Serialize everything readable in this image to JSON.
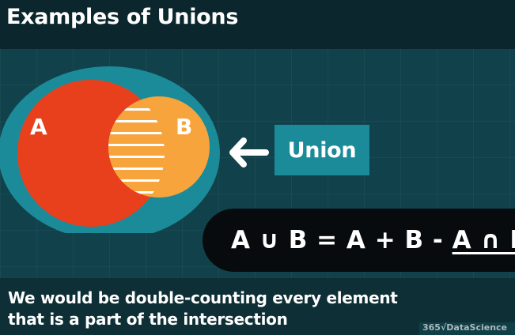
{
  "title": "Examples of Unions",
  "venn": {
    "set_a": "A",
    "set_b": "B",
    "colors": {
      "a": "#e8401c",
      "b": "#f8a43d",
      "ring": "#1b8b99",
      "hatch": "#ffffff"
    }
  },
  "union_label": "Union",
  "formula": {
    "lhs": "A ∪ B = A + B - ",
    "rhs": "A ∩ B"
  },
  "caption": {
    "line1": "We would be double-counting every element",
    "line2": "that is a part of the intersection"
  },
  "watermark": "365√DataScience"
}
